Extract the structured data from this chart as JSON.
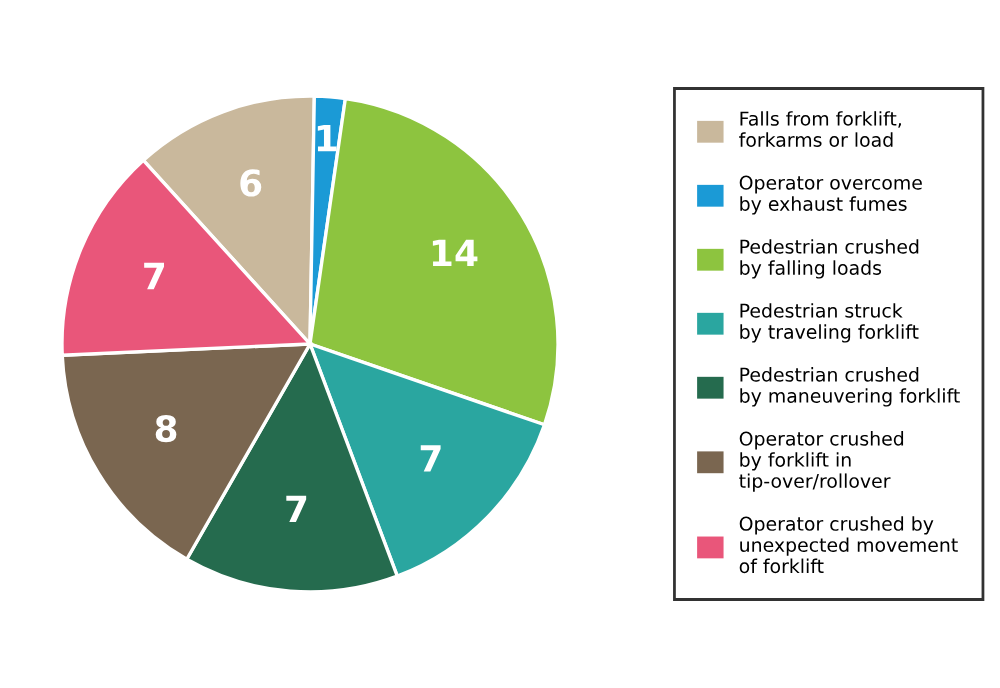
{
  "chart_data": {
    "type": "pie",
    "categories": [
      "Falls from forklift,\nforkarms or load",
      "Operator overcome\nby exhaust fumes",
      "Pedestrian crushed\nby falling loads",
      "Pedestrian struck\nby traveling forklift",
      "Pedestrian crushed\nby maneuvering forklift",
      "Operator crushed\nby forklift in\ntip-over/rollover",
      "Operator crushed by\nunexpected movement\nof forklift"
    ],
    "values": [
      6,
      1,
      14,
      7,
      7,
      8,
      7
    ],
    "colors": [
      "#c9b89c",
      "#1b9ad6",
      "#8dc43f",
      "#2aa6a0",
      "#256b4e",
      "#7a6650",
      "#e9567a"
    ],
    "data_labels": true,
    "legend": "right"
  }
}
